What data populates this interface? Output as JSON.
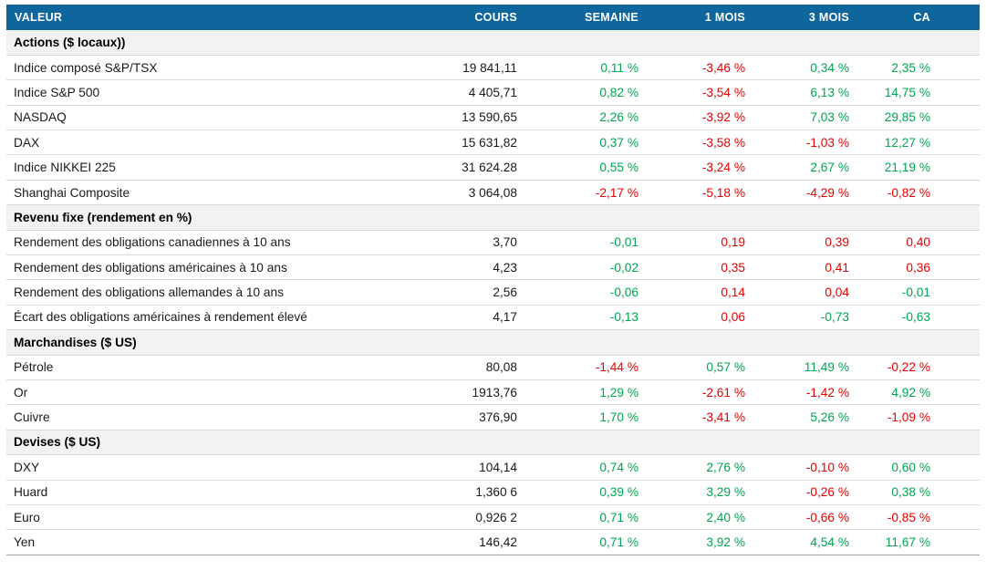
{
  "colors": {
    "header_bg": "#0F669C",
    "header_text": "#FFFFFF",
    "section_bg": "#F2F2F2",
    "row_divider": "#D9D9D9",
    "table_bottom_border": "#A6A6A6",
    "positive": "#00A651",
    "negative": "#E60000",
    "text": "#1A1A1A"
  },
  "chart_data": {
    "type": "table",
    "columns": [
      "VALEUR",
      "COURS",
      "SEMAINE",
      "1 MOIS",
      "3 MOIS",
      "CA"
    ],
    "sections": [
      {
        "label": "Actions ($ locaux))",
        "rows": [
          {
            "valeur": "Indice composé S&P/TSX",
            "cours": "19 841,11",
            "changes": [
              {
                "text": "0,11 %",
                "tone": "pos"
              },
              {
                "text": "-3,46 %",
                "tone": "neg"
              },
              {
                "text": "0,34 %",
                "tone": "pos"
              },
              {
                "text": "2,35 %",
                "tone": "pos"
              }
            ]
          },
          {
            "valeur": "Indice S&P 500",
            "cours": "4 405,71",
            "changes": [
              {
                "text": "0,82 %",
                "tone": "pos"
              },
              {
                "text": "-3,54 %",
                "tone": "neg"
              },
              {
                "text": "6,13 %",
                "tone": "pos"
              },
              {
                "text": "14,75 %",
                "tone": "pos"
              }
            ]
          },
          {
            "valeur": "NASDAQ",
            "cours": "13 590,65",
            "changes": [
              {
                "text": "2,26 %",
                "tone": "pos"
              },
              {
                "text": "-3,92 %",
                "tone": "neg"
              },
              {
                "text": "7,03 %",
                "tone": "pos"
              },
              {
                "text": "29,85 %",
                "tone": "pos"
              }
            ]
          },
          {
            "valeur": "DAX",
            "cours": "15 631,82",
            "changes": [
              {
                "text": "0,37 %",
                "tone": "pos"
              },
              {
                "text": "-3,58 %",
                "tone": "neg"
              },
              {
                "text": "-1,03 %",
                "tone": "neg"
              },
              {
                "text": "12,27 %",
                "tone": "pos"
              }
            ]
          },
          {
            "valeur": "Indice NIKKEI 225",
            "cours": "31 624.28",
            "changes": [
              {
                "text": "0,55 %",
                "tone": "pos"
              },
              {
                "text": "-3,24 %",
                "tone": "neg"
              },
              {
                "text": "2,67 %",
                "tone": "pos"
              },
              {
                "text": "21,19 %",
                "tone": "pos"
              }
            ]
          },
          {
            "valeur": "Shanghai Composite",
            "cours": "3 064,08",
            "changes": [
              {
                "text": "-2,17 %",
                "tone": "neg"
              },
              {
                "text": "-5,18 %",
                "tone": "neg"
              },
              {
                "text": "-4,29 %",
                "tone": "neg"
              },
              {
                "text": "-0,82 %",
                "tone": "neg"
              }
            ]
          }
        ]
      },
      {
        "label": "Revenu fixe (rendement en %)",
        "rows": [
          {
            "valeur": "Rendement des obligations canadiennes à 10 ans",
            "cours": "3,70",
            "changes": [
              {
                "text": "-0,01",
                "tone": "pos"
              },
              {
                "text": "0,19",
                "tone": "neg"
              },
              {
                "text": "0,39",
                "tone": "neg"
              },
              {
                "text": "0,40",
                "tone": "neg"
              }
            ]
          },
          {
            "valeur": "Rendement des obligations américaines à 10 ans",
            "cours": "4,23",
            "changes": [
              {
                "text": "-0,02",
                "tone": "pos"
              },
              {
                "text": "0,35",
                "tone": "neg"
              },
              {
                "text": "0,41",
                "tone": "neg"
              },
              {
                "text": "0,36",
                "tone": "neg"
              }
            ]
          },
          {
            "valeur": "Rendement des obligations allemandes à 10 ans",
            "cours": "2,56",
            "changes": [
              {
                "text": "-0,06",
                "tone": "pos"
              },
              {
                "text": "0,14",
                "tone": "neg"
              },
              {
                "text": "0,04",
                "tone": "neg"
              },
              {
                "text": "-0,01",
                "tone": "pos"
              }
            ]
          },
          {
            "valeur": "Écart des obligations américaines à rendement élevé",
            "cours": "4,17",
            "changes": [
              {
                "text": "-0,13",
                "tone": "pos"
              },
              {
                "text": "0,06",
                "tone": "neg"
              },
              {
                "text": "-0,73",
                "tone": "pos"
              },
              {
                "text": "-0,63",
                "tone": "pos"
              }
            ]
          }
        ]
      },
      {
        "label": "Marchandises ($ US)",
        "rows": [
          {
            "valeur": "Pétrole",
            "cours": "80,08",
            "changes": [
              {
                "text": "-1,44 %",
                "tone": "neg"
              },
              {
                "text": "0,57 %",
                "tone": "pos"
              },
              {
                "text": "11,49 %",
                "tone": "pos"
              },
              {
                "text": "-0,22 %",
                "tone": "neg"
              }
            ]
          },
          {
            "valeur": "Or",
            "cours": "1913,76",
            "changes": [
              {
                "text": "1,29 %",
                "tone": "pos"
              },
              {
                "text": "-2,61 %",
                "tone": "neg"
              },
              {
                "text": "-1,42 %",
                "tone": "neg"
              },
              {
                "text": "4,92 %",
                "tone": "pos"
              }
            ]
          },
          {
            "valeur": "Cuivre",
            "cours": "376,90",
            "changes": [
              {
                "text": "1,70 %",
                "tone": "pos"
              },
              {
                "text": "-3,41 %",
                "tone": "neg"
              },
              {
                "text": "5,26 %",
                "tone": "pos"
              },
              {
                "text": "-1,09 %",
                "tone": "neg"
              }
            ]
          }
        ]
      },
      {
        "label": "Devises ($ US)",
        "rows": [
          {
            "valeur": "DXY",
            "cours": "104,14",
            "changes": [
              {
                "text": "0,74 %",
                "tone": "pos"
              },
              {
                "text": "2,76 %",
                "tone": "pos"
              },
              {
                "text": "-0,10 %",
                "tone": "neg"
              },
              {
                "text": "0,60 %",
                "tone": "pos"
              }
            ]
          },
          {
            "valeur": "Huard",
            "cours": "1,360 6",
            "changes": [
              {
                "text": "0,39 %",
                "tone": "pos"
              },
              {
                "text": "3,29 %",
                "tone": "pos"
              },
              {
                "text": "-0,26 %",
                "tone": "neg"
              },
              {
                "text": "0,38 %",
                "tone": "pos"
              }
            ]
          },
          {
            "valeur": "Euro",
            "cours": "0,926 2",
            "changes": [
              {
                "text": "0,71 %",
                "tone": "pos"
              },
              {
                "text": "2,40 %",
                "tone": "pos"
              },
              {
                "text": "-0,66 %",
                "tone": "neg"
              },
              {
                "text": "-0,85 %",
                "tone": "neg"
              }
            ]
          },
          {
            "valeur": "Yen",
            "cours": "146,42",
            "changes": [
              {
                "text": "0,71 %",
                "tone": "pos"
              },
              {
                "text": "3,92 %",
                "tone": "pos"
              },
              {
                "text": "4,54 %",
                "tone": "pos"
              },
              {
                "text": "11,67 %",
                "tone": "pos"
              }
            ]
          }
        ]
      }
    ]
  }
}
